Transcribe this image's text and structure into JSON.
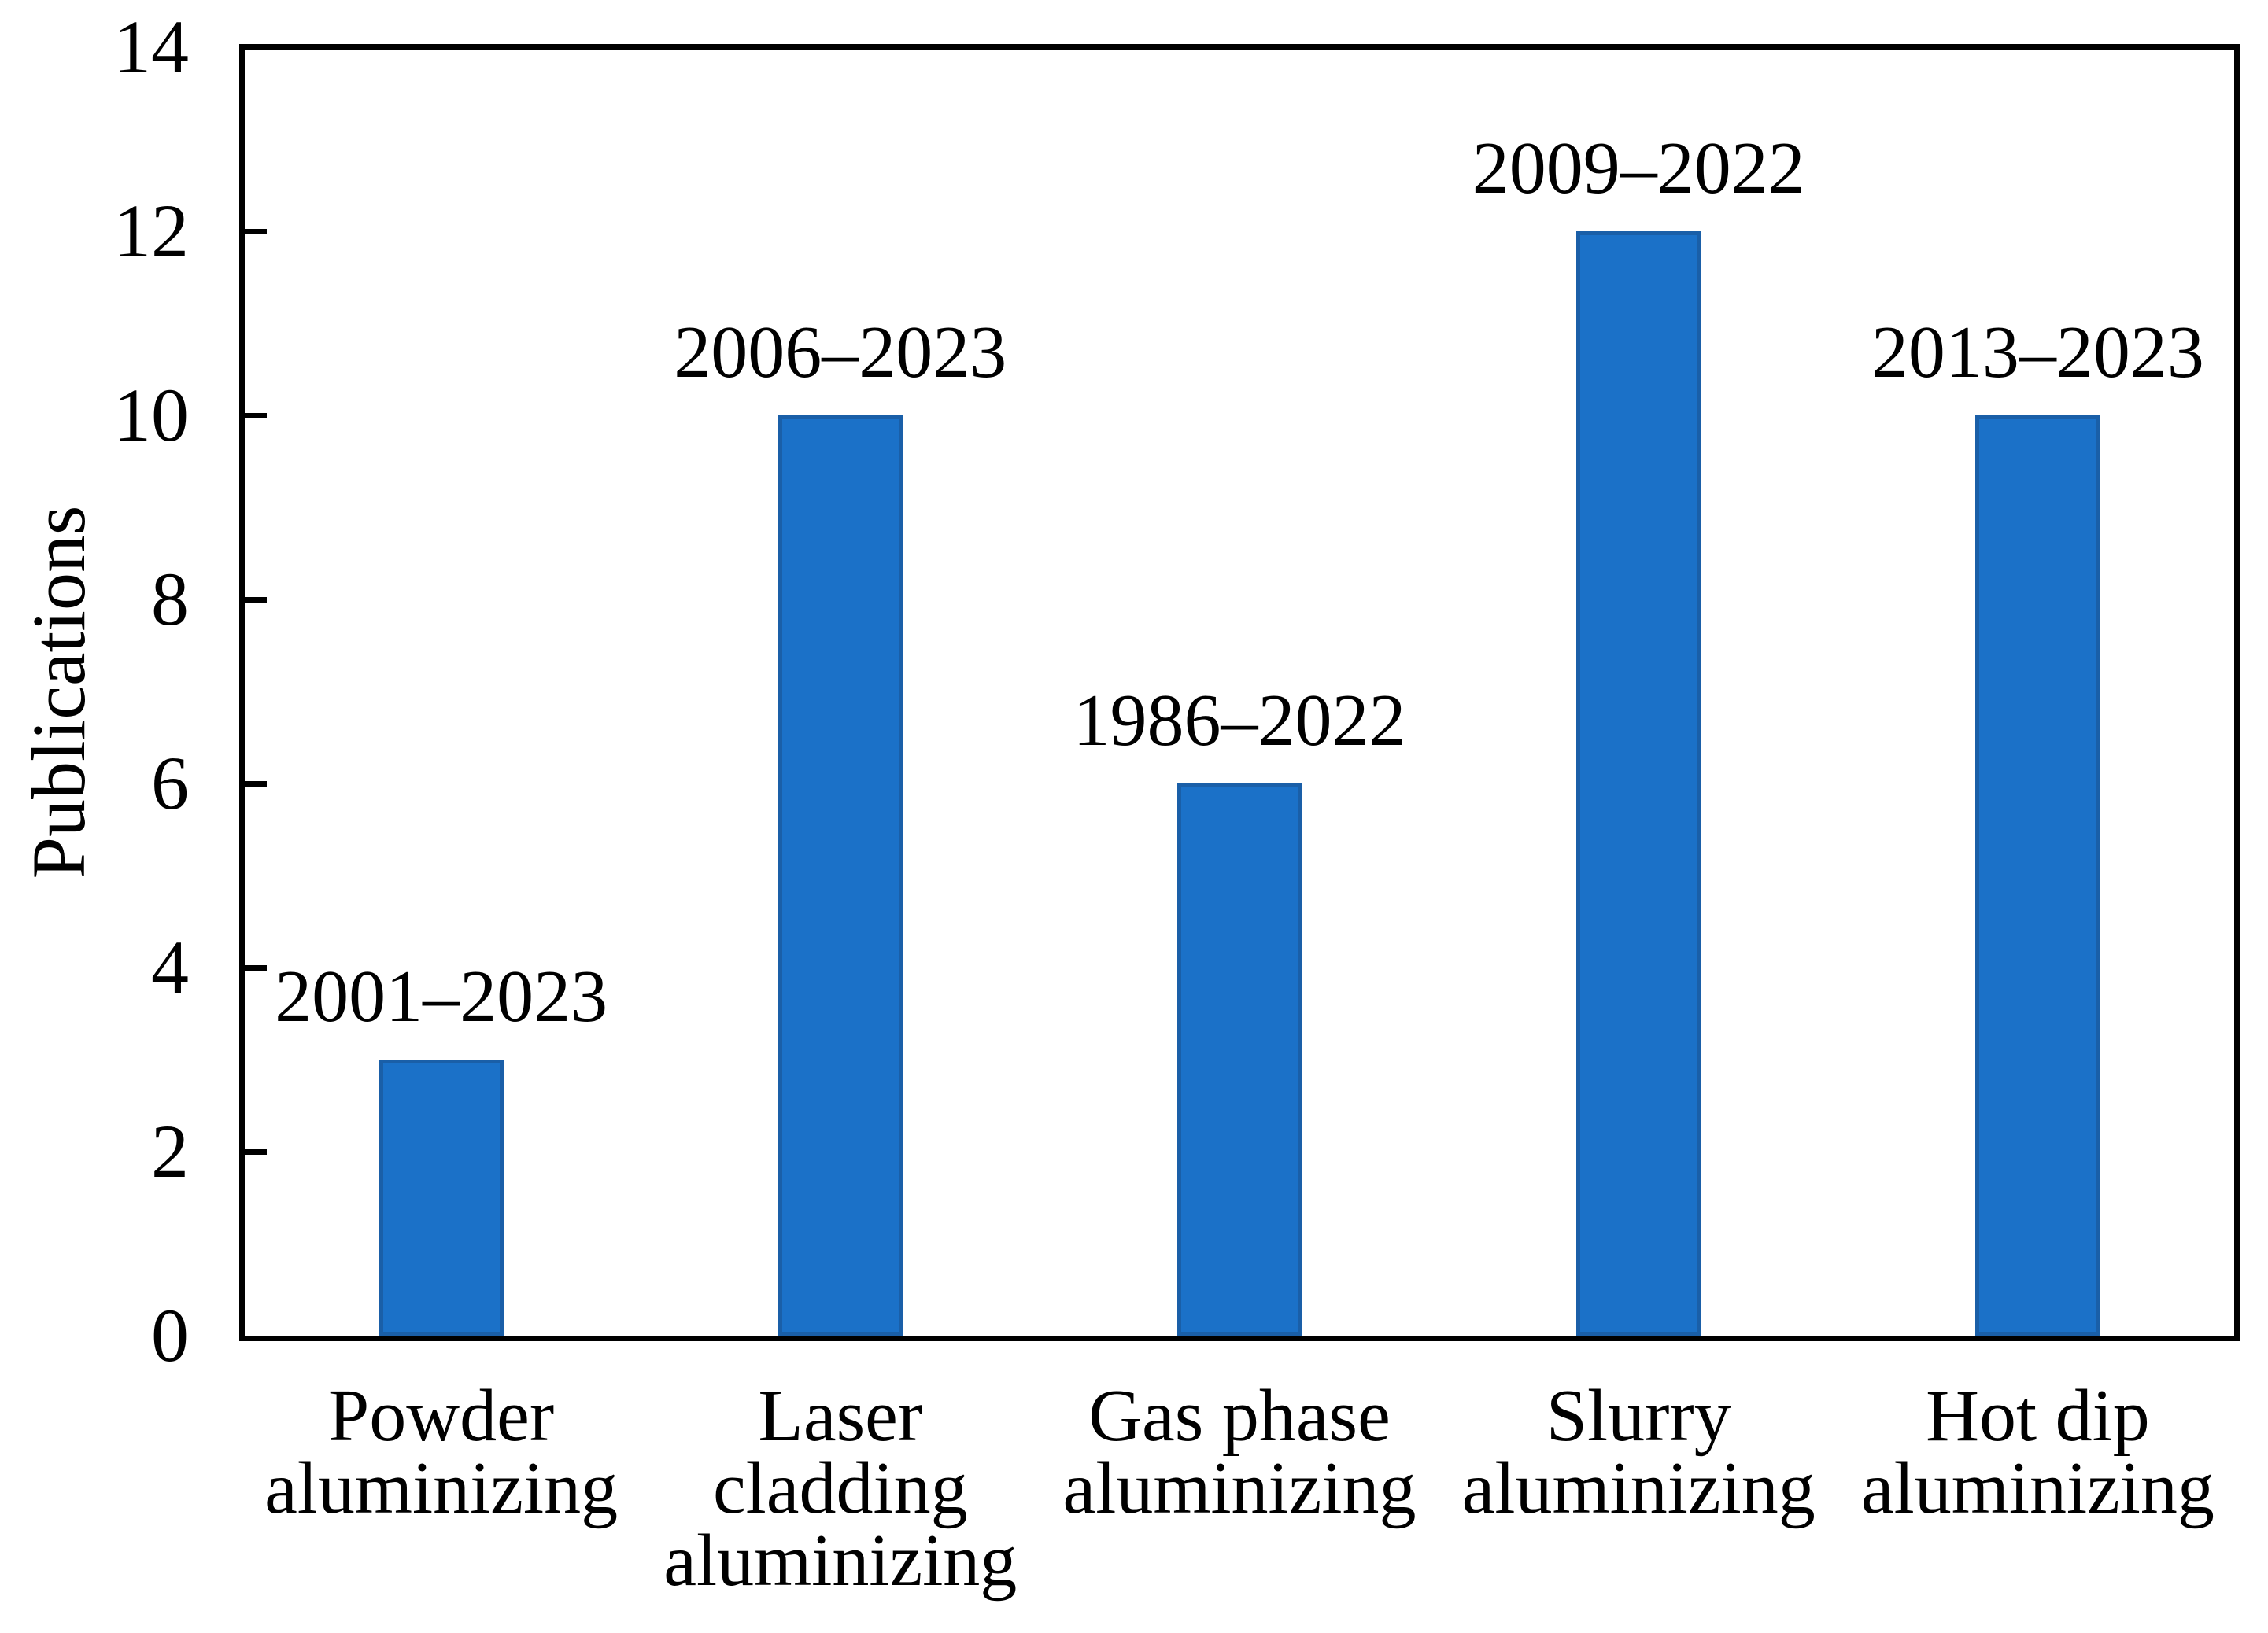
{
  "chart_data": {
    "type": "bar",
    "title": "",
    "xlabel": "",
    "ylabel": "Publications",
    "ylim": [
      0,
      14
    ],
    "yticks": [
      0,
      2,
      4,
      6,
      8,
      10,
      12,
      14
    ],
    "grid": false,
    "legend": null,
    "categories": [
      "Powder\naluminizing",
      "Laser\ncladding\naluminizing",
      "Gas phase\naluminizing",
      "Slurry\naluminizing",
      "Hot dip\naluminizing"
    ],
    "values": [
      3,
      10,
      6,
      12,
      10
    ],
    "bar_labels": [
      "2001–2023",
      "2006–2023",
      "1986–2022",
      "2009–2022",
      "2013–2023"
    ],
    "bar_color": "#1b71c8",
    "bar_border_color": "#1a5fa8",
    "axis_color": "#000000",
    "text_color": "#000000",
    "background_color": "#ffffff"
  }
}
